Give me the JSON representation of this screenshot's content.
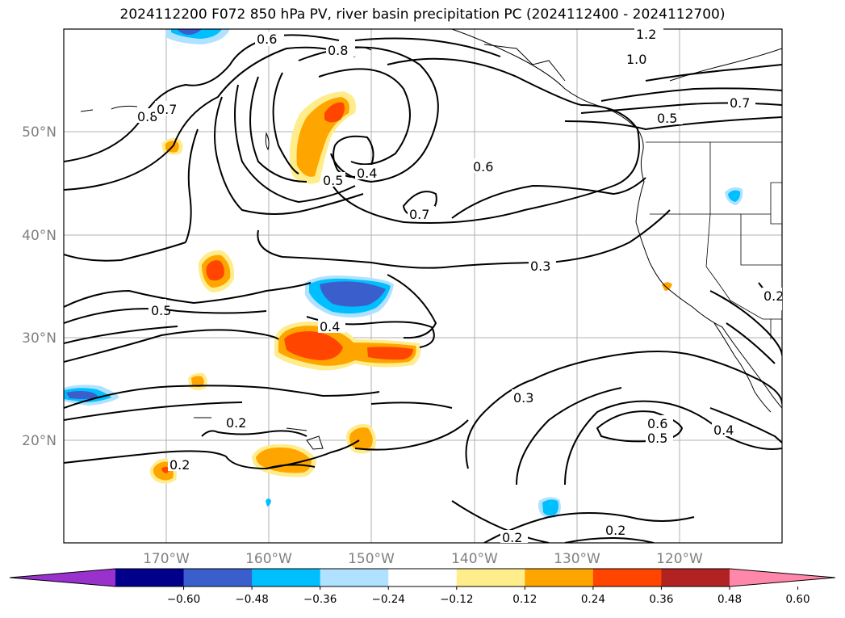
{
  "title": "2024112200 F072 850 hPa PV, river basin precipitation PC (2024112400 - 2024112700)",
  "latitude_labels": [
    "50°N",
    "40°N",
    "30°N",
    "20°N"
  ],
  "longitude_labels": [
    "170°W",
    "160°W",
    "150°W",
    "140°W",
    "130°W",
    "120°W"
  ],
  "contour_labels": [
    "0.6",
    "0.8",
    "1.2",
    "1.0",
    "0.7",
    "0.5",
    "0.8",
    "0.7",
    "0.5",
    "0.4",
    "0.6",
    "0.7",
    "0.3",
    "0.5",
    "0.4",
    "0.3",
    "0.2",
    "0.2",
    "0.6",
    "0.5",
    "0.4",
    "0.2",
    "0.2",
    "0.2"
  ],
  "colorbar": {
    "tick_labels": [
      "−0.60",
      "−0.48",
      "−0.36",
      "−0.24",
      "−0.12",
      "0.12",
      "0.24",
      "0.36",
      "0.48",
      "0.60"
    ],
    "colors": [
      "#9932cc",
      "#00008b",
      "#3a5fcd",
      "#00bfff",
      "#b0e2ff",
      "#ffffff",
      "#ffec8b",
      "#ffa500",
      "#ff4500",
      "#b22222",
      "#ff88aa"
    ]
  }
}
